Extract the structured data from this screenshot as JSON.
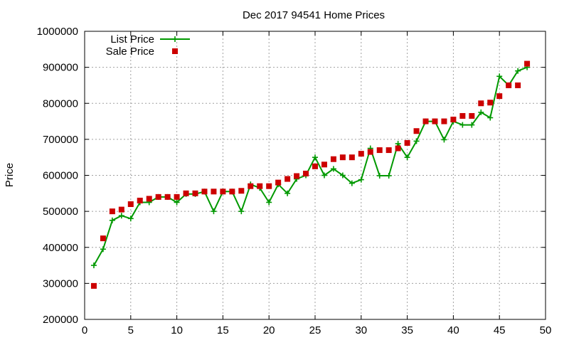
{
  "chart_data": {
    "type": "line",
    "title": "Dec 2017 94541 Home Prices",
    "xlabel": "",
    "ylabel": "Price",
    "xlim": [
      0,
      50
    ],
    "ylim": [
      200000,
      1000000
    ],
    "xticks": [
      0,
      5,
      10,
      15,
      20,
      25,
      30,
      35,
      40,
      45,
      50
    ],
    "yticks": [
      200000,
      300000,
      400000,
      500000,
      600000,
      700000,
      800000,
      900000,
      1000000
    ],
    "grid": true,
    "legend_position": "top-left",
    "series": [
      {
        "name": "List Price",
        "style": "line-with-plus-markers",
        "color": "#009900",
        "x": [
          1,
          2,
          3,
          4,
          5,
          6,
          7,
          8,
          9,
          10,
          11,
          12,
          13,
          14,
          15,
          16,
          17,
          18,
          19,
          20,
          21,
          22,
          23,
          24,
          25,
          26,
          27,
          28,
          29,
          30,
          31,
          32,
          33,
          34,
          35,
          36,
          37,
          38,
          39,
          40,
          41,
          42,
          43,
          44,
          45,
          46,
          47,
          48
        ],
        "values": [
          350000,
          395000,
          475000,
          488000,
          480000,
          525000,
          525000,
          540000,
          540000,
          525000,
          548000,
          548000,
          555000,
          500000,
          555000,
          555000,
          500000,
          575000,
          565000,
          525000,
          575000,
          550000,
          590000,
          600000,
          650000,
          600000,
          618000,
          600000,
          578000,
          588000,
          675000,
          599000,
          599000,
          688000,
          650000,
          695000,
          750000,
          750000,
          699000,
          750000,
          740000,
          740000,
          775000,
          760000,
          875000,
          850000,
          890000,
          900000
        ]
      },
      {
        "name": "Sale Price",
        "style": "square-markers",
        "color": "#cc0000",
        "x": [
          1,
          2,
          3,
          4,
          5,
          6,
          7,
          8,
          9,
          10,
          11,
          12,
          13,
          14,
          15,
          16,
          17,
          18,
          19,
          20,
          21,
          22,
          23,
          24,
          25,
          26,
          27,
          28,
          29,
          30,
          31,
          32,
          33,
          34,
          35,
          36,
          37,
          38,
          39,
          40,
          41,
          42,
          43,
          44,
          45,
          46,
          47,
          48
        ],
        "values": [
          293000,
          425000,
          500000,
          505000,
          520000,
          530000,
          535000,
          540000,
          540000,
          540000,
          550000,
          550000,
          555000,
          555000,
          555000,
          555000,
          557000,
          570000,
          570000,
          570000,
          580000,
          590000,
          598000,
          605000,
          625000,
          630000,
          645000,
          650000,
          650000,
          660000,
          665000,
          670000,
          670000,
          675000,
          690000,
          723000,
          750000,
          750000,
          750000,
          755000,
          765000,
          765000,
          800000,
          802000,
          820000,
          850000,
          850000,
          910000
        ]
      }
    ]
  }
}
